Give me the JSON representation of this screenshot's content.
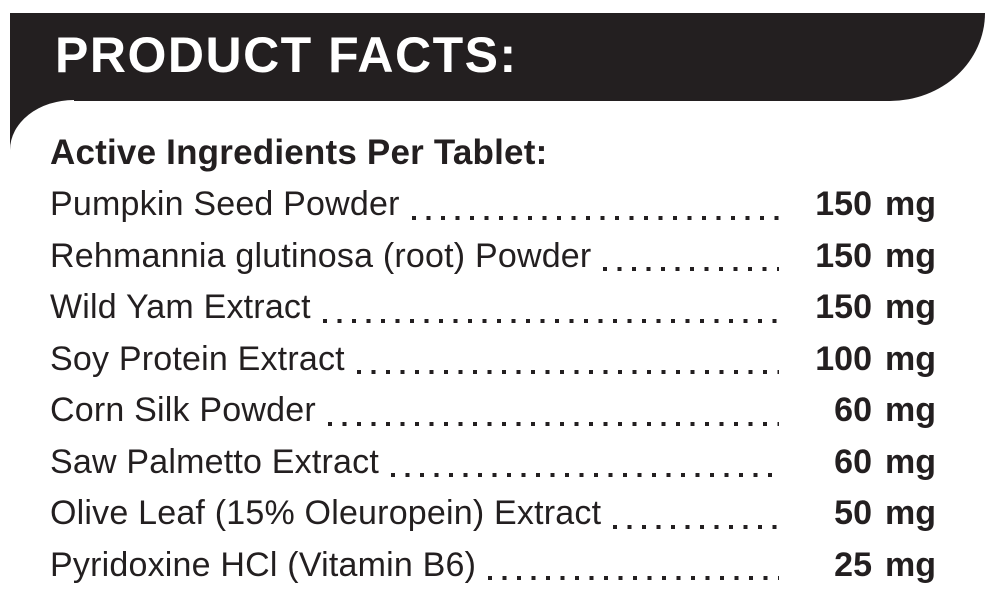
{
  "header": {
    "title": "PRODUCT FACTS:"
  },
  "section": {
    "title": "Active Ingredients Per Tablet:"
  },
  "ingredients": [
    {
      "name": "Pumpkin Seed Powder",
      "value": "150",
      "unit": "mg"
    },
    {
      "name": "Rehmannia glutinosa (root) Powder",
      "value": "150",
      "unit": "mg"
    },
    {
      "name": "Wild Yam Extract",
      "value": "150",
      "unit": "mg"
    },
    {
      "name": "Soy Protein Extract",
      "value": "100",
      "unit": "mg"
    },
    {
      "name": "Corn Silk Powder",
      "value": "60",
      "unit": "mg"
    },
    {
      "name": "Saw Palmetto Extract",
      "value": "60",
      "unit": "mg"
    },
    {
      "name": "Olive Leaf (15% Oleuropein) Extract",
      "value": "50",
      "unit": "mg"
    },
    {
      "name": "Pyridoxine HCl (Vitamin B6)",
      "value": "25",
      "unit": "mg"
    }
  ],
  "colors": {
    "banner": "#231f20",
    "text": "#231f20",
    "background": "#ffffff",
    "banner_text": "#ffffff"
  }
}
